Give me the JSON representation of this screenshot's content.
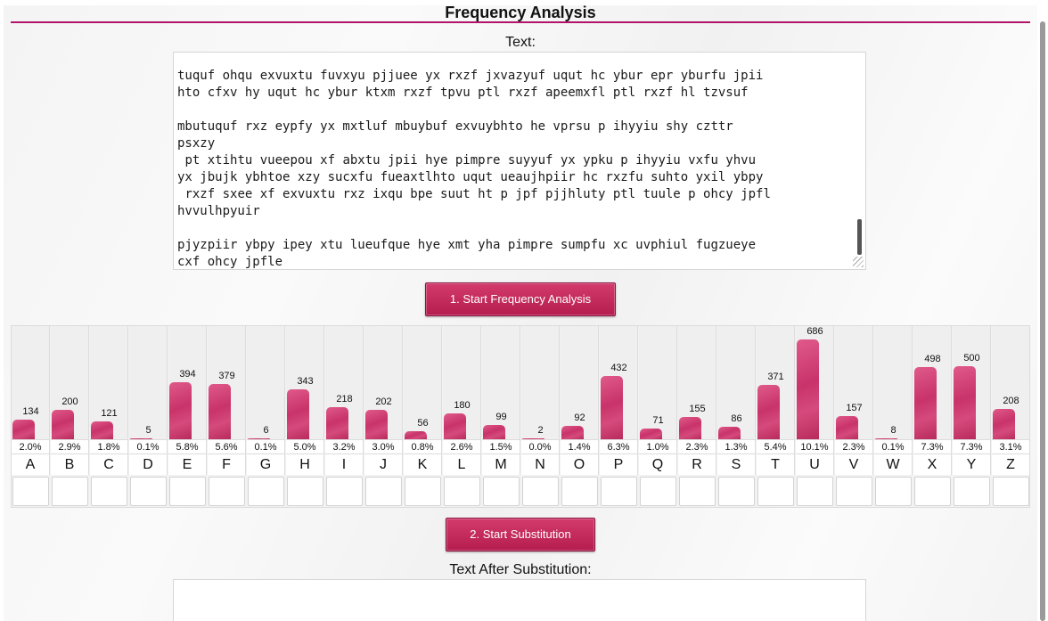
{
  "page": {
    "title": "Frequency Analysis",
    "text_label": "Text:",
    "cipher_text": "tuquf ohqu exvuxtu fuvxyu pjjuee yx rxzf jxvazyuf uqut hc ybur epr yburfu jpii\nhto cfxv hy uqut hc ybur ktxm rxzf tpvu ptl rxzf apeemxfl ptl rxzf hl tzvsuf\n\nmbutuquf rxz eypfy yx mxtluf mbuybuf exvuybhto he vprsu p ihyyiu shy czttr\npsxzy\n pt xtihtu vueepou xf abxtu jpii hye pimpre suyyuf yx ypku p ihyyiu vxfu yhvu\nyx jbujk ybhtoe xzy sucxfu fueaxtlhto uqut ueaujhpiir hc rxzfu suhto yxil ybpy\n rxzf sxee xf exvuxtu rxz ixqu bpe suut ht p jpf pjjhluty ptl tuule p ohcy jpfl\nhvvulhpyuir\n\npjyzpiir ybpy ipey xtu lueufque hye xmt yha pimpre sumpfu xc uvphiul fugzueye\ncxf ohcy jpfle",
    "start_frequency_button": "1. Start Frequency Analysis",
    "start_substitution_button": "2. Start Substitution",
    "after_label": "Text After Substitution:"
  },
  "frequency": {
    "columns": [
      {
        "letter": "A",
        "count": 134,
        "percent": "2.0%",
        "value": 2.0
      },
      {
        "letter": "B",
        "count": 200,
        "percent": "2.9%",
        "value": 2.9
      },
      {
        "letter": "C",
        "count": 121,
        "percent": "1.8%",
        "value": 1.8
      },
      {
        "letter": "D",
        "count": 5,
        "percent": "0.1%",
        "value": 0.1
      },
      {
        "letter": "E",
        "count": 394,
        "percent": "5.8%",
        "value": 5.8
      },
      {
        "letter": "F",
        "count": 379,
        "percent": "5.6%",
        "value": 5.6
      },
      {
        "letter": "G",
        "count": 6,
        "percent": "0.1%",
        "value": 0.1
      },
      {
        "letter": "H",
        "count": 343,
        "percent": "5.0%",
        "value": 5.0
      },
      {
        "letter": "I",
        "count": 218,
        "percent": "3.2%",
        "value": 3.2
      },
      {
        "letter": "J",
        "count": 202,
        "percent": "3.0%",
        "value": 3.0
      },
      {
        "letter": "K",
        "count": 56,
        "percent": "0.8%",
        "value": 0.8
      },
      {
        "letter": "L",
        "count": 180,
        "percent": "2.6%",
        "value": 2.6
      },
      {
        "letter": "M",
        "count": 99,
        "percent": "1.5%",
        "value": 1.5
      },
      {
        "letter": "N",
        "count": 2,
        "percent": "0.0%",
        "value": 0.0
      },
      {
        "letter": "O",
        "count": 92,
        "percent": "1.4%",
        "value": 1.4
      },
      {
        "letter": "P",
        "count": 432,
        "percent": "6.3%",
        "value": 6.3
      },
      {
        "letter": "Q",
        "count": 71,
        "percent": "1.0%",
        "value": 1.0
      },
      {
        "letter": "R",
        "count": 155,
        "percent": "2.3%",
        "value": 2.3
      },
      {
        "letter": "S",
        "count": 86,
        "percent": "1.3%",
        "value": 1.3
      },
      {
        "letter": "T",
        "count": 371,
        "percent": "5.4%",
        "value": 5.4
      },
      {
        "letter": "U",
        "count": 686,
        "percent": "10.1%",
        "value": 10.1
      },
      {
        "letter": "V",
        "count": 157,
        "percent": "2.3%",
        "value": 2.3
      },
      {
        "letter": "W",
        "count": 8,
        "percent": "0.1%",
        "value": 0.1
      },
      {
        "letter": "X",
        "count": 498,
        "percent": "7.3%",
        "value": 7.3
      },
      {
        "letter": "Y",
        "count": 500,
        "percent": "7.3%",
        "value": 7.3
      },
      {
        "letter": "Z",
        "count": 208,
        "percent": "3.1%",
        "value": 3.1
      }
    ],
    "max_count": 686
  },
  "colors": {
    "accent": "#b0156a",
    "bar": "#c8336a",
    "button": "#c22a5b"
  }
}
